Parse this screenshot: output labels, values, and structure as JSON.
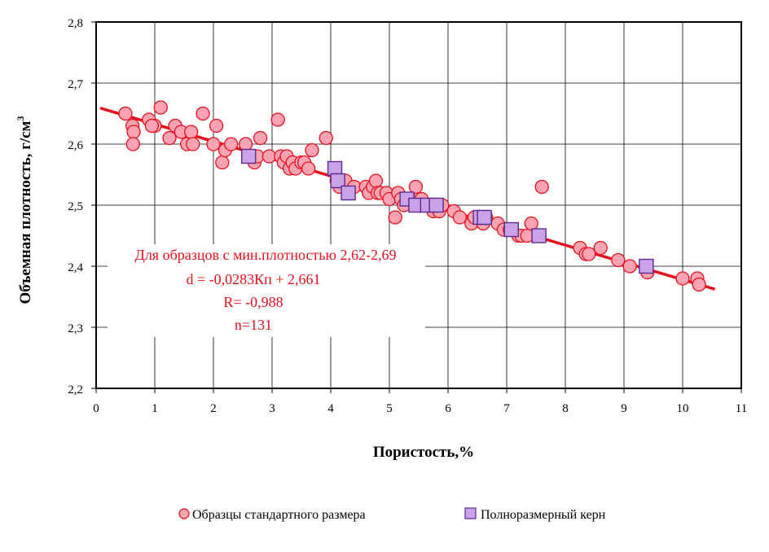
{
  "chart_data": {
    "type": "scatter",
    "xlabel": "Пористость,%",
    "ylabel": "Объемная плотность,  г/см",
    "ylabel_sup": "3",
    "xlim": [
      0,
      11
    ],
    "ylim": [
      2.2,
      2.8
    ],
    "grid": true,
    "legend_position": "bottom",
    "x_ticks": [
      "0",
      "1",
      "2",
      "3",
      "4",
      "5",
      "6",
      "7",
      "8",
      "9",
      "10",
      "11"
    ],
    "y_ticks": [
      "2,2",
      "2,3",
      "2,4",
      "2,5",
      "2,6",
      "2,7",
      "2,8"
    ],
    "annotation": {
      "lines": [
        "Для образцов с мин.плотностью 2,62-2,69",
        "d = -0,0283Кп + 2,661",
        "R= -0,988",
        "n=131"
      ],
      "color": "#e8101c"
    },
    "trendline": {
      "slope": -0.0283,
      "intercept": 2.661,
      "x": [
        0.07,
        10.55
      ],
      "color": "#e8101c"
    },
    "series": [
      {
        "name": "Образцы стандартного размера",
        "marker": "circle",
        "fill": "#ffa3b3",
        "stroke": "#e8101c",
        "points": [
          [
            0.5,
            2.65
          ],
          [
            0.62,
            2.63
          ],
          [
            0.64,
            2.62
          ],
          [
            0.63,
            2.6
          ],
          [
            0.9,
            2.64
          ],
          [
            1.1,
            2.66
          ],
          [
            1.0,
            2.63
          ],
          [
            0.95,
            2.63
          ],
          [
            1.25,
            2.61
          ],
          [
            1.35,
            2.63
          ],
          [
            1.45,
            2.62
          ],
          [
            1.55,
            2.6
          ],
          [
            1.62,
            2.62
          ],
          [
            1.65,
            2.6
          ],
          [
            1.82,
            2.65
          ],
          [
            2.05,
            2.63
          ],
          [
            2.0,
            2.6
          ],
          [
            2.15,
            2.57
          ],
          [
            2.2,
            2.59
          ],
          [
            2.3,
            2.6
          ],
          [
            2.55,
            2.6
          ],
          [
            2.7,
            2.57
          ],
          [
            2.75,
            2.58
          ],
          [
            2.8,
            2.61
          ],
          [
            2.95,
            2.58
          ],
          [
            3.1,
            2.64
          ],
          [
            3.15,
            2.58
          ],
          [
            3.2,
            2.57
          ],
          [
            3.25,
            2.58
          ],
          [
            3.3,
            2.56
          ],
          [
            3.35,
            2.57
          ],
          [
            3.4,
            2.56
          ],
          [
            3.5,
            2.57
          ],
          [
            3.55,
            2.57
          ],
          [
            3.62,
            2.56
          ],
          [
            3.68,
            2.59
          ],
          [
            3.92,
            2.61
          ],
          [
            4.1,
            2.54
          ],
          [
            4.15,
            2.53
          ],
          [
            4.25,
            2.54
          ],
          [
            4.4,
            2.53
          ],
          [
            4.6,
            2.53
          ],
          [
            4.65,
            2.52
          ],
          [
            4.72,
            2.53
          ],
          [
            4.77,
            2.54
          ],
          [
            4.8,
            2.52
          ],
          [
            4.85,
            2.52
          ],
          [
            4.95,
            2.52
          ],
          [
            5.0,
            2.51
          ],
          [
            5.1,
            2.48
          ],
          [
            5.15,
            2.52
          ],
          [
            5.2,
            2.51
          ],
          [
            5.25,
            2.5
          ],
          [
            5.3,
            2.51
          ],
          [
            5.35,
            2.51
          ],
          [
            5.45,
            2.53
          ],
          [
            5.5,
            2.5
          ],
          [
            5.55,
            2.51
          ],
          [
            5.6,
            2.5
          ],
          [
            5.75,
            2.49
          ],
          [
            5.85,
            2.49
          ],
          [
            5.9,
            2.5
          ],
          [
            6.1,
            2.49
          ],
          [
            6.2,
            2.48
          ],
          [
            6.4,
            2.47
          ],
          [
            6.45,
            2.48
          ],
          [
            6.6,
            2.47
          ],
          [
            6.65,
            2.48
          ],
          [
            6.85,
            2.47
          ],
          [
            6.95,
            2.46
          ],
          [
            7.05,
            2.46
          ],
          [
            7.2,
            2.45
          ],
          [
            7.25,
            2.45
          ],
          [
            7.35,
            2.45
          ],
          [
            7.42,
            2.47
          ],
          [
            7.6,
            2.53
          ],
          [
            8.25,
            2.43
          ],
          [
            8.35,
            2.42
          ],
          [
            8.4,
            2.42
          ],
          [
            8.6,
            2.43
          ],
          [
            8.9,
            2.41
          ],
          [
            9.1,
            2.4
          ],
          [
            9.4,
            2.39
          ],
          [
            10.0,
            2.38
          ],
          [
            10.25,
            2.38
          ],
          [
            10.28,
            2.37
          ]
        ]
      },
      {
        "name": "Полноразмерный керн",
        "marker": "square",
        "fill": "#c9a2e8",
        "stroke": "#5a2a8c",
        "points": [
          [
            2.6,
            2.58
          ],
          [
            4.07,
            2.56
          ],
          [
            4.12,
            2.54
          ],
          [
            4.3,
            2.52
          ],
          [
            5.3,
            2.51
          ],
          [
            5.45,
            2.5
          ],
          [
            5.65,
            2.5
          ],
          [
            5.8,
            2.5
          ],
          [
            6.55,
            2.48
          ],
          [
            6.62,
            2.48
          ],
          [
            7.08,
            2.46
          ],
          [
            7.55,
            2.45
          ],
          [
            9.38,
            2.4
          ]
        ]
      }
    ]
  }
}
